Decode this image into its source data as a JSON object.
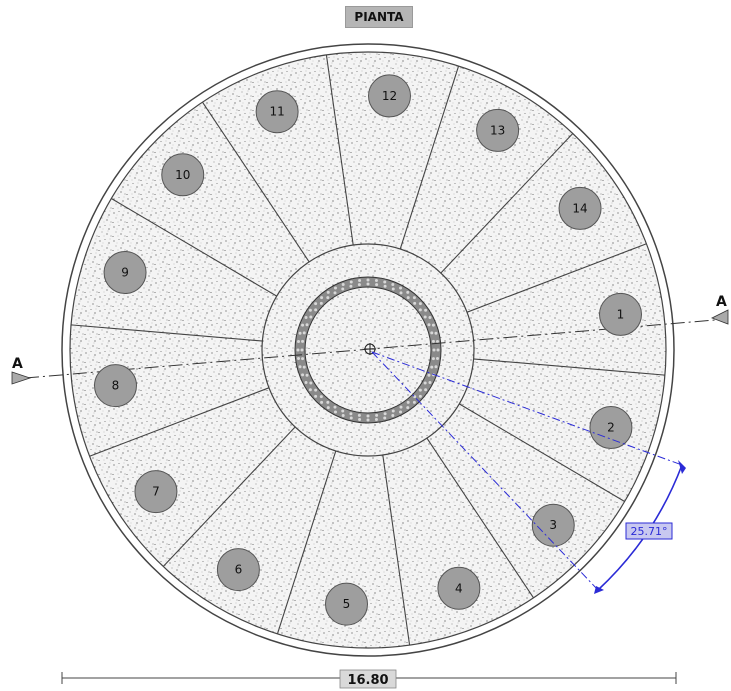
{
  "title": "PIANTA",
  "pile_labels": [
    "1",
    "2",
    "3",
    "4",
    "5",
    "6",
    "7",
    "8",
    "9",
    "10",
    "11",
    "12",
    "13",
    "14"
  ],
  "section_marker": {
    "left": "A",
    "right": "A"
  },
  "angle_dimension": "25.71°",
  "diameter_dimension": "16.80",
  "colors": {
    "pile_fill": "#9e9e9e",
    "pile_stroke": "#555555",
    "line": "#333333",
    "dimension_blue": "#2b2bd6",
    "title_bg": "#b5b5b5",
    "label_bg": "#c8c8f0"
  }
}
